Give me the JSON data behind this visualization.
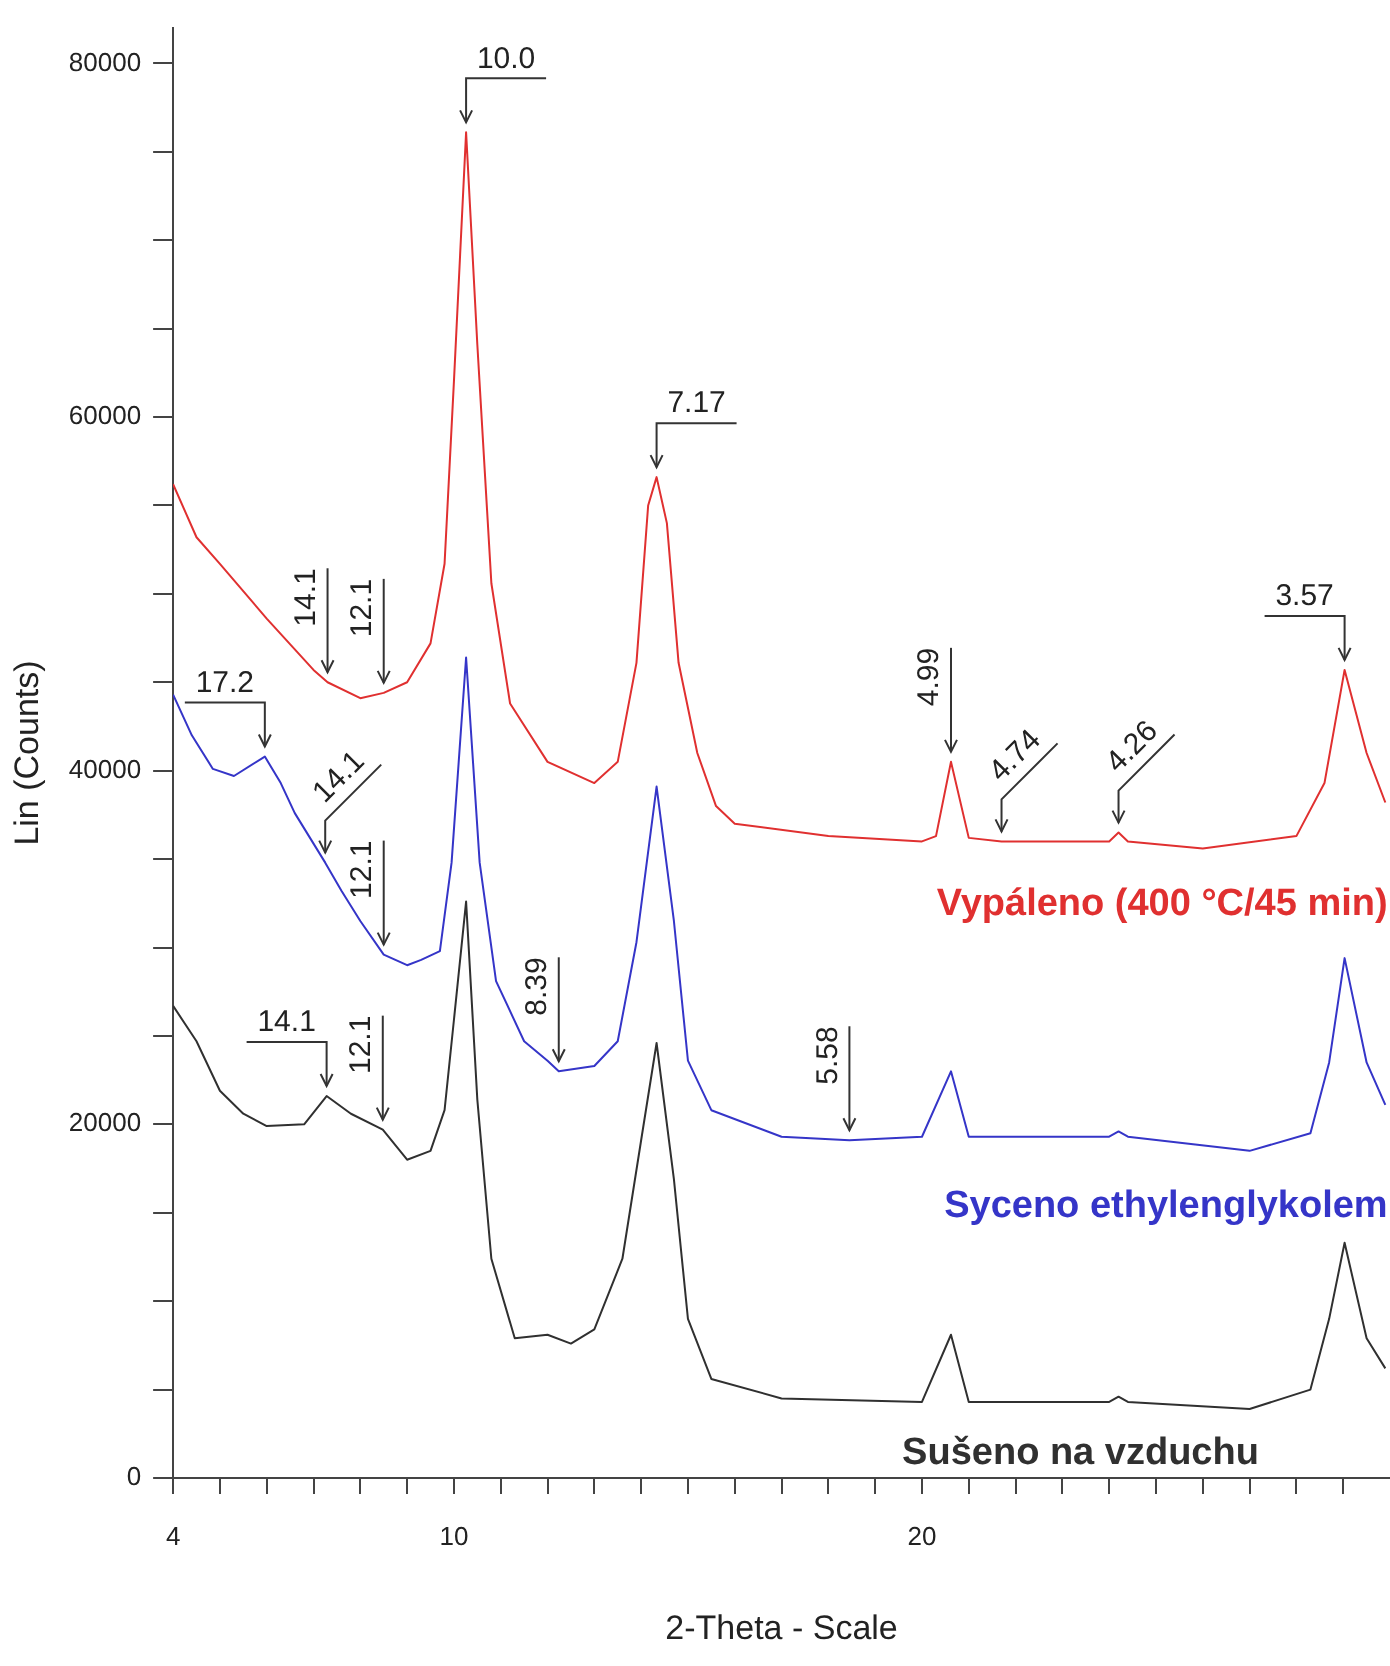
{
  "chart_data": {
    "type": "line",
    "xlabel": "2-Theta - Scale",
    "ylabel": "Lin (Counts)",
    "xlim": [
      4,
      30
    ],
    "ylim": [
      0,
      82000
    ],
    "xticks": [
      4,
      {
        "value": 5,
        "label": null
      },
      {
        "value": 6,
        "label": null
      },
      {
        "value": 7,
        "label": null
      },
      {
        "value": 8,
        "label": null
      },
      {
        "value": 9,
        "label": null
      },
      10,
      {
        "value": 11,
        "label": null
      },
      {
        "value": 12,
        "label": null
      },
      {
        "value": 13,
        "label": null
      },
      {
        "value": 14,
        "label": null
      },
      {
        "value": 15,
        "label": null
      },
      {
        "value": 16,
        "label": null
      },
      {
        "value": 17,
        "label": null
      },
      {
        "value": 18,
        "label": null
      },
      {
        "value": 19,
        "label": null
      },
      20,
      {
        "value": 21,
        "label": null
      },
      {
        "value": 22,
        "label": null
      },
      {
        "value": 23,
        "label": null
      },
      {
        "value": 24,
        "label": null
      },
      {
        "value": 25,
        "label": null
      },
      {
        "value": 26,
        "label": null
      },
      {
        "value": 27,
        "label": null
      },
      {
        "value": 28,
        "label": null
      },
      {
        "value": 29,
        "label": null
      }
    ],
    "yticks": [
      0,
      {
        "value": 5000,
        "label": null
      },
      {
        "value": 10000,
        "label": null
      },
      {
        "value": 15000,
        "label": null
      },
      20000,
      {
        "value": 25000,
        "label": null
      },
      {
        "value": 30000,
        "label": null
      },
      {
        "value": 35000,
        "label": null
      },
      40000,
      {
        "value": 45000,
        "label": null
      },
      {
        "value": 50000,
        "label": null
      },
      {
        "value": 55000,
        "label": null
      },
      60000,
      {
        "value": 65000,
        "label": null
      },
      {
        "value": 70000,
        "label": null
      },
      {
        "value": 75000,
        "label": null
      },
      80000
    ],
    "grid": false,
    "legend": false,
    "marker": "none",
    "line_style": "solid",
    "series": [
      {
        "name": "Vypáleno (400 °C/45 min)",
        "color": "#e03030",
        "x": [
          4,
          4.5,
          5,
          6,
          7,
          7.3,
          8,
          8.5,
          9,
          9.5,
          9.8,
          10,
          10.26,
          10.5,
          10.8,
          11.2,
          12,
          13,
          13.5,
          13.9,
          14.15,
          14.33,
          14.55,
          14.8,
          15.2,
          15.6,
          16,
          18,
          20,
          20.3,
          20.62,
          21,
          21.7,
          24,
          24.2,
          24.4,
          26,
          28,
          28.6,
          29.03,
          29.5,
          29.9
        ],
        "values": [
          56200,
          53200,
          51700,
          48600,
          45700,
          45000,
          44100,
          44400,
          45000,
          47200,
          51700,
          62000,
          76100,
          64100,
          50600,
          43800,
          40500,
          39300,
          40500,
          46100,
          55000,
          56600,
          54000,
          46100,
          41000,
          38000,
          37000,
          36300,
          36000,
          36300,
          40500,
          36200,
          36000,
          36000,
          36500,
          36000,
          35600,
          36300,
          39300,
          45700,
          41000,
          38200
        ]
      },
      {
        "name": "Syceno ethylenglykolem",
        "color": "#3535c8",
        "x": [
          4,
          4.4,
          4.85,
          5.3,
          5.96,
          6.3,
          6.6,
          7.25,
          7.6,
          8,
          8.5,
          9,
          9.3,
          9.7,
          9.95,
          10.26,
          10.55,
          10.9,
          11.5,
          12,
          12.24,
          13,
          13.5,
          13.9,
          14.33,
          14.7,
          15,
          15.5,
          17,
          18.45,
          20,
          20.62,
          21,
          24,
          24.2,
          24.4,
          27,
          28.3,
          28.7,
          29.03,
          29.5,
          29.9
        ],
        "values": [
          44300,
          42000,
          40100,
          39700,
          40800,
          39300,
          37600,
          34800,
          33200,
          31500,
          29600,
          29000,
          29300,
          29800,
          34800,
          46400,
          34800,
          28100,
          24700,
          23600,
          23000,
          23300,
          24700,
          30300,
          39100,
          31500,
          23600,
          20800,
          19300,
          19100,
          19300,
          23000,
          19300,
          19300,
          19600,
          19300,
          18500,
          19500,
          23500,
          29400,
          23500,
          21100
        ]
      },
      {
        "name": "Sušeno na vzduchu",
        "color": "#303030",
        "x": [
          4,
          4.5,
          5,
          5.5,
          6,
          6.8,
          7.28,
          7.8,
          8.48,
          9,
          9.5,
          9.8,
          10,
          10.26,
          10.5,
          10.8,
          11.3,
          12,
          12.5,
          13,
          13.6,
          14,
          14.33,
          14.7,
          15,
          15.5,
          17,
          20,
          20.62,
          21,
          24,
          24.2,
          24.4,
          27,
          28.3,
          28.7,
          29.03,
          29.5,
          29.9
        ],
        "values": [
          26700,
          24700,
          21900,
          20600,
          19900,
          20000,
          21600,
          20600,
          19700,
          18000,
          18500,
          20800,
          25900,
          32600,
          21400,
          12400,
          7900,
          8100,
          7600,
          8400,
          12400,
          19100,
          24600,
          16900,
          9000,
          5600,
          4500,
          4300,
          8100,
          4300,
          4300,
          4600,
          4300,
          3900,
          5000,
          9000,
          13300,
          7900,
          6200
        ]
      }
    ],
    "annotations": [
      {
        "text": "10.0",
        "x": 10.26,
        "y": 76100
      },
      {
        "text": "7.17",
        "x": 14.33,
        "y": 56600
      },
      {
        "text": "14.1",
        "x": 7.3,
        "y": 45000
      },
      {
        "text": "12.1",
        "x": 8.5,
        "y": 44400
      },
      {
        "text": "4.99",
        "x": 20.62,
        "y": 40500
      },
      {
        "text": "4.74",
        "x": 21.7,
        "y": 36000
      },
      {
        "text": "4.26",
        "x": 24.2,
        "y": 36500
      },
      {
        "text": "3.57",
        "x": 29.03,
        "y": 45700
      },
      {
        "text": "17.2",
        "x": 5.96,
        "y": 40800
      },
      {
        "text": "14.1",
        "x": 7.25,
        "y": 34800
      },
      {
        "text": "12.1",
        "x": 8.5,
        "y": 29600
      },
      {
        "text": "8.39",
        "x": 12.24,
        "y": 23000
      },
      {
        "text": "5.58",
        "x": 18.45,
        "y": 19100
      },
      {
        "text": "14.1",
        "x": 7.28,
        "y": 21600
      },
      {
        "text": "12.1",
        "x": 8.48,
        "y": 19700
      }
    ]
  }
}
